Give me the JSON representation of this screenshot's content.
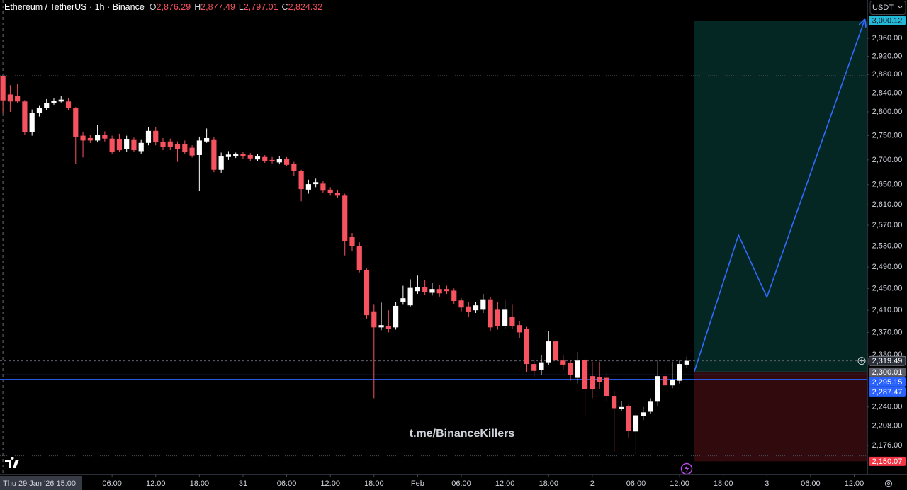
{
  "chart_data": {
    "type": "candlestick",
    "legend_title": "Ethereum / TetherUS · 1h · Binance",
    "legend_keys": [
      "O",
      "H",
      "L",
      "C"
    ],
    "legend_values": [
      "2,876.29",
      "2,877.49",
      "2,797.01",
      "2,824.32"
    ],
    "currency": "USDT",
    "watermark": "t.me/BinanceKillers",
    "x": [
      0,
      1,
      2,
      3,
      4,
      5,
      6,
      7,
      8,
      9,
      10,
      11,
      12,
      13,
      14,
      15,
      16,
      17,
      18,
      19,
      20,
      21,
      22,
      23,
      24,
      25,
      26,
      27,
      28,
      29,
      30,
      31,
      32,
      33,
      34,
      35,
      36,
      37,
      38,
      39,
      40,
      41,
      42,
      43,
      44,
      45,
      46,
      47,
      48,
      49,
      50,
      51,
      52,
      53,
      54,
      55,
      56,
      57,
      58,
      59,
      60,
      61,
      62,
      63,
      64,
      65,
      66,
      67,
      68,
      69,
      70,
      71,
      72,
      73,
      74,
      75,
      76,
      77,
      78,
      79,
      80,
      81,
      82,
      83,
      84,
      85,
      86,
      87,
      88,
      89,
      90,
      91,
      92,
      93,
      94
    ],
    "open": [
      2876.29,
      2837,
      2834,
      2822,
      2757,
      2797,
      2808,
      2818,
      2822,
      2822,
      2808,
      2750,
      2745,
      2740,
      2751,
      2744,
      2743,
      2722,
      2741,
      2718,
      2735,
      2760,
      2737,
      2738,
      2733,
      2732,
      2725,
      2710,
      2738,
      2741,
      2680,
      2706,
      2708,
      2712,
      2710,
      2701,
      2706,
      2700,
      2695,
      2702,
      2692,
      2677,
      2640,
      2651,
      2652,
      2640,
      2634,
      2628,
      2547,
      2530,
      2484,
      2408,
      2379,
      2382,
      2379,
      2425,
      2419,
      2445,
      2453,
      2442,
      2449,
      2449,
      2446,
      2428,
      2417,
      2410,
      2411,
      2430,
      2411,
      2382,
      2398,
      2383,
      2376,
      2314,
      2303,
      2317,
      2354,
      2320,
      2316,
      2290,
      2321,
      2293,
      2291,
      2290,
      2259,
      2237,
      2241,
      2199,
      2225,
      2232,
      2249,
      2293,
      2277,
      2285,
      2313
    ],
    "high": [
      2877.49,
      2857,
      2860,
      2825,
      2805,
      2814,
      2827,
      2830,
      2834,
      2830,
      2810,
      2757,
      2752,
      2773,
      2759,
      2750,
      2754,
      2750,
      2746,
      2741,
      2768,
      2768,
      2745,
      2744,
      2738,
      2740,
      2730,
      2748,
      2765,
      2748,
      2715,
      2718,
      2715,
      2717,
      2714,
      2712,
      2710,
      2706,
      2707,
      2706,
      2696,
      2680,
      2660,
      2662,
      2658,
      2645,
      2640,
      2632,
      2555,
      2537,
      2487,
      2420,
      2424,
      2410,
      2425,
      2455,
      2467,
      2474,
      2465,
      2460,
      2456,
      2455,
      2450,
      2432,
      2425,
      2425,
      2440,
      2434,
      2425,
      2430,
      2420,
      2390,
      2380,
      2322,
      2330,
      2372,
      2360,
      2330,
      2320,
      2335,
      2325,
      2318,
      2318,
      2298,
      2268,
      2250,
      2244,
      2231,
      2240,
      2255,
      2320,
      2310,
      2318,
      2320,
      2327
    ],
    "low": [
      2797.01,
      2800,
      2819,
      2752,
      2750,
      2790,
      2803,
      2815,
      2820,
      2803,
      2692,
      2705,
      2735,
      2736,
      2738,
      2712,
      2716,
      2717,
      2716,
      2713,
      2730,
      2730,
      2720,
      2720,
      2696,
      2712,
      2705,
      2637,
      2735,
      2675,
      2674,
      2700,
      2704,
      2702,
      2697,
      2697,
      2694,
      2693,
      2691,
      2687,
      2668,
      2617,
      2632,
      2645,
      2633,
      2628,
      2624,
      2512,
      2520,
      2480,
      2395,
      2255,
      2374,
      2370,
      2375,
      2420,
      2417,
      2440,
      2438,
      2437,
      2435,
      2440,
      2422,
      2408,
      2398,
      2405,
      2405,
      2373,
      2375,
      2377,
      2376,
      2360,
      2300,
      2292,
      2295,
      2312,
      2315,
      2305,
      2285,
      2280,
      2225,
      2255,
      2270,
      2250,
      2165,
      2233,
      2188,
      2159,
      2218,
      2228,
      2242,
      2270,
      2272,
      2280,
      2308
    ],
    "close": [
      2824.32,
      2822,
      2822,
      2757,
      2797,
      2808,
      2819,
      2823,
      2826,
      2808,
      2748,
      2740,
      2740,
      2751,
      2744,
      2717,
      2720,
      2742,
      2720,
      2735,
      2760,
      2737,
      2727,
      2726,
      2723,
      2717,
      2709,
      2740,
      2745,
      2680,
      2707,
      2711,
      2712,
      2707,
      2703,
      2707,
      2698,
      2697,
      2702,
      2690,
      2677,
      2641,
      2651,
      2655,
      2638,
      2633,
      2628,
      2540,
      2530,
      2484,
      2401,
      2379,
      2383,
      2376,
      2418,
      2432,
      2451,
      2452,
      2443,
      2449,
      2441,
      2445,
      2427,
      2415,
      2407,
      2419,
      2430,
      2379,
      2382,
      2411,
      2382,
      2370,
      2314,
      2302,
      2317,
      2354,
      2320,
      2313,
      2295,
      2320,
      2271,
      2271,
      2283,
      2259,
      2238,
      2240,
      2200,
      2226,
      2231,
      2249,
      2293,
      2277,
      2287,
      2314,
      2319.49
    ],
    "up_color": "#ffffff",
    "down_color": "#f7525f",
    "log": true,
    "ylim": [
      2131,
      3047
    ],
    "yticks": [
      {
        "value": 2176,
        "label": "2,176.00"
      },
      {
        "value": 2208,
        "label": "2,208.00"
      },
      {
        "value": 2240,
        "label": "2,240.00"
      },
      {
        "value": 2330,
        "label": "2,330.00"
      },
      {
        "value": 2370,
        "label": "2,370.00"
      },
      {
        "value": 2410,
        "label": "2,410.00"
      },
      {
        "value": 2450,
        "label": "2,450.00"
      },
      {
        "value": 2490,
        "label": "2,490.00"
      },
      {
        "value": 2530,
        "label": "2,530.00"
      },
      {
        "value": 2570,
        "label": "2,570.00"
      },
      {
        "value": 2610,
        "label": "2,610.00"
      },
      {
        "value": 2650,
        "label": "2,650.00"
      },
      {
        "value": 2700,
        "label": "2,700.00"
      },
      {
        "value": 2750,
        "label": "2,750.00"
      },
      {
        "value": 2800,
        "label": "2,800.00"
      },
      {
        "value": 2840,
        "label": "2,840.00"
      },
      {
        "value": 2880,
        "label": "2,880.00"
      },
      {
        "value": 2920,
        "label": "2,920.00"
      },
      {
        "value": 2960,
        "label": "2,960.00"
      }
    ],
    "xlim": [
      -0.4,
      118.8
    ],
    "xticks": [
      {
        "value": 15,
        "label": "06:00"
      },
      {
        "value": 21,
        "label": "12:00"
      },
      {
        "value": 27,
        "label": "18:00"
      },
      {
        "value": 33,
        "label": "31"
      },
      {
        "value": 39,
        "label": "06:00"
      },
      {
        "value": 45,
        "label": "12:00"
      },
      {
        "value": 51,
        "label": "18:00"
      },
      {
        "value": 57,
        "label": "Feb"
      },
      {
        "value": 63,
        "label": "06:00"
      },
      {
        "value": 69,
        "label": "12:00"
      },
      {
        "value": 75,
        "label": "18:00"
      },
      {
        "value": 81,
        "label": "2"
      },
      {
        "value": 87,
        "label": "06:00"
      },
      {
        "value": 93,
        "label": "12:00"
      },
      {
        "value": 99,
        "label": "18:00"
      },
      {
        "value": 105,
        "label": "3"
      },
      {
        "value": 111,
        "label": "06:00"
      },
      {
        "value": 117,
        "label": "12:00"
      }
    ],
    "crosshair": {
      "x": 0,
      "label": "Thu 29 Jan '26  15:00"
    },
    "price_lines": [
      {
        "value": 2319.49,
        "label": "2,319.49",
        "color": "#5d606b",
        "badge": "#2a2e39",
        "dashed": true
      },
      {
        "value": 2295.15,
        "label": "2,295.15",
        "color": "#2962ff",
        "badge": "#2962ff",
        "dashed": false
      },
      {
        "value": 2287.47,
        "label": "2,287.47",
        "color": "#2962ff",
        "badge": "#2962ff",
        "dashed": false
      }
    ],
    "position": {
      "start": 95,
      "entry": {
        "value": 2300.01,
        "label": "2,300.01"
      },
      "target": {
        "value": 3000.12,
        "label": "3,000.12"
      },
      "stop": {
        "value": 2150.07,
        "label": "2,150.07"
      },
      "profit_color": "rgba(16,150,140,0.26)",
      "loss_color": "rgba(200,40,50,0.24)"
    },
    "projection": {
      "x": [
        95,
        101.1,
        105,
        118.4
      ],
      "y": [
        2300.01,
        2551,
        2434,
        3000.12
      ],
      "color": "#2f6bff"
    }
  }
}
